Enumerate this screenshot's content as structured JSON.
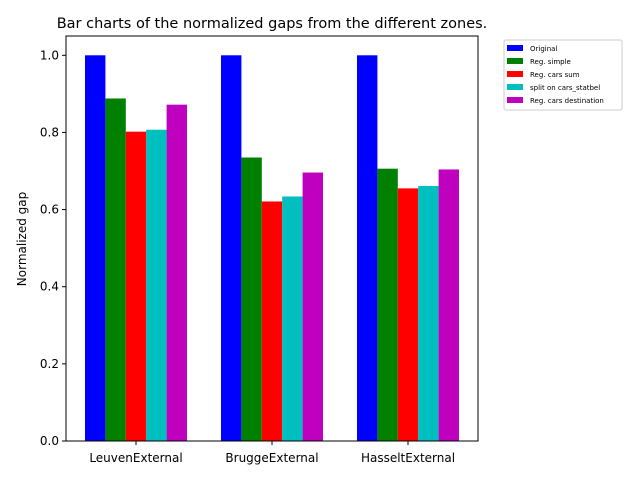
{
  "chart_data": {
    "type": "bar",
    "title": "Bar charts of the normalized gaps from the different zones.",
    "xlabel": "",
    "ylabel": "Normalized gap",
    "ylim": [
      0,
      1.05
    ],
    "yticks": [
      0.0,
      0.2,
      0.4,
      0.6,
      0.8,
      1.0
    ],
    "ytick_labels": [
      "0.0",
      "0.2",
      "0.4",
      "0.6",
      "0.8",
      "1.0"
    ],
    "categories": [
      "LeuvenExternal",
      "BruggeExternal",
      "HasseltExternal"
    ],
    "grid": false,
    "legend_position": "outside-top-right",
    "series": [
      {
        "name": "Original",
        "color": "#0000ff",
        "values": [
          1.0,
          1.0,
          1.0
        ]
      },
      {
        "name": "Reg. simple",
        "color": "#008000",
        "values": [
          0.888,
          0.735,
          0.706
        ]
      },
      {
        "name": "Reg. cars sum",
        "color": "#ff0000",
        "values": [
          0.802,
          0.621,
          0.655
        ]
      },
      {
        "name": "split on cars_statbel",
        "color": "#00bfbf",
        "values": [
          0.807,
          0.634,
          0.661
        ]
      },
      {
        "name": "Reg. cars destination",
        "color": "#bf00bf",
        "values": [
          0.872,
          0.696,
          0.704
        ]
      }
    ]
  }
}
